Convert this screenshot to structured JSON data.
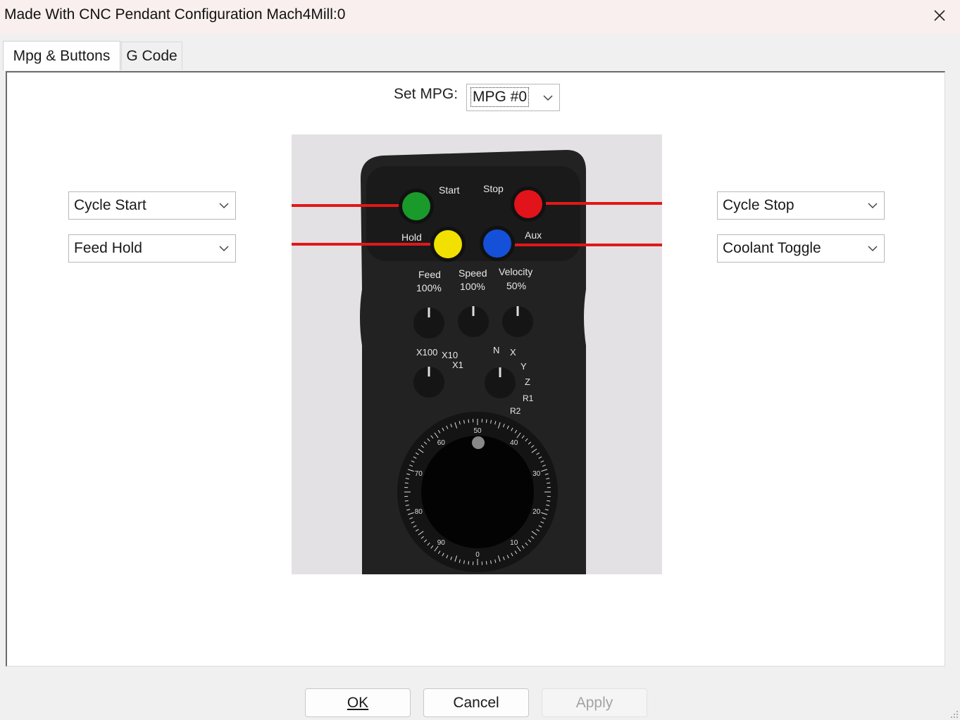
{
  "window": {
    "title": "Made With CNC Pendant Configuration Mach4Mill:0",
    "close_icon": "close-icon"
  },
  "tabs": [
    {
      "label": "Mpg & Buttons",
      "active": true
    },
    {
      "label": "G Code",
      "active": false
    }
  ],
  "mpg": {
    "label": "Set MPG:",
    "selected": "MPG #0"
  },
  "buttons_left": [
    {
      "selected": "Cycle Start"
    },
    {
      "selected": "Feed Hold"
    }
  ],
  "buttons_right": [
    {
      "selected": "Cycle Stop"
    },
    {
      "selected": "Coolant Toggle"
    }
  ],
  "pendant": {
    "button_labels": {
      "start": "Start",
      "stop": "Stop",
      "hold": "Hold",
      "aux": "Aux"
    },
    "knob_labels": {
      "feed": "Feed",
      "speed": "Speed",
      "velocity": "Velocity"
    },
    "knob_values": {
      "feed": "100%",
      "speed": "100%",
      "velocity": "50%"
    },
    "step_labels": [
      "X100",
      "X10",
      "X1"
    ],
    "axis_labels": [
      "N",
      "X",
      "Y",
      "Z",
      "R1",
      "R2"
    ],
    "dial_numbers": [
      "50",
      "40",
      "30",
      "20",
      "10",
      "0",
      "90",
      "80",
      "70",
      "60"
    ],
    "colors": {
      "start": "#1a9a2a",
      "stop": "#e0141a",
      "hold": "#f2e000",
      "aux": "#1550d8",
      "wire": "#e01818",
      "body": "#222222"
    }
  },
  "footer": {
    "ok": "OK",
    "cancel": "Cancel",
    "apply": "Apply",
    "apply_enabled": false
  }
}
